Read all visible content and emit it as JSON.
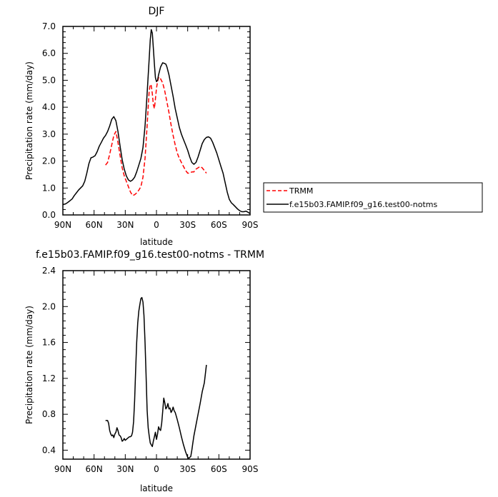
{
  "chart_data": [
    {
      "type": "line",
      "title": "DJF",
      "xlabel": "latitude",
      "ylabel": "Precipitation rate (mm/day)",
      "xlim": [
        90,
        -90
      ],
      "ylim": [
        0,
        7
      ],
      "x_ticks": [
        90,
        60,
        30,
        0,
        -30,
        -60,
        -90
      ],
      "x_tick_labels": [
        "90N",
        "60N",
        "30N",
        "0",
        "30S",
        "60S",
        "90S"
      ],
      "y_ticks": [
        0,
        1,
        2,
        3,
        4,
        5,
        6,
        7
      ],
      "y_tick_labels": [
        "0.0",
        "1.0",
        "2.0",
        "3.0",
        "4.0",
        "5.0",
        "6.0",
        "7.0"
      ],
      "grid": false,
      "legend": "right",
      "series": [
        {
          "name": "TRMM",
          "color": "#ff0000",
          "dash": "dashed",
          "x": [
            49,
            47,
            45,
            43,
            41,
            39,
            37,
            35,
            33,
            31,
            29,
            27,
            25,
            23,
            21,
            19,
            17,
            15,
            13,
            11,
            9,
            8,
            7,
            6,
            5,
            4,
            3,
            2,
            1,
            0,
            -1,
            -2,
            -3,
            -4,
            -6,
            -8,
            -10,
            -12,
            -14,
            -16,
            -18,
            -20,
            -22,
            -24,
            -26,
            -28,
            -30,
            -32,
            -34,
            -36,
            -38,
            -40,
            -42,
            -44,
            -46,
            -48
          ],
          "y": [
            1.85,
            1.95,
            2.25,
            2.6,
            2.95,
            3.1,
            2.7,
            2.2,
            1.75,
            1.45,
            1.25,
            1.05,
            0.85,
            0.72,
            0.75,
            0.82,
            0.92,
            1.05,
            1.4,
            2.1,
            3.3,
            4.0,
            4.6,
            4.85,
            4.8,
            4.5,
            4.1,
            3.95,
            4.3,
            4.7,
            4.95,
            5.1,
            5.12,
            5.05,
            4.9,
            4.6,
            4.2,
            3.8,
            3.35,
            2.95,
            2.6,
            2.3,
            2.1,
            1.95,
            1.8,
            1.65,
            1.55,
            1.55,
            1.6,
            1.6,
            1.7,
            1.75,
            1.8,
            1.75,
            1.65,
            1.55
          ]
        },
        {
          "name": "f.e15b03.FAMIP.f09_g16.test00-notms",
          "color": "#000000",
          "dash": "solid",
          "x": [
            90,
            87,
            84,
            81,
            79,
            77,
            75,
            73,
            71,
            69,
            67,
            65,
            63,
            61,
            59,
            57,
            55,
            53,
            51,
            49,
            47,
            45,
            43,
            41,
            39,
            37,
            35,
            33,
            31,
            29,
            27,
            25,
            23,
            21,
            19,
            17,
            15,
            13,
            11,
            9,
            7,
            6,
            5,
            4,
            3,
            2,
            1,
            0,
            -1,
            -2,
            -4,
            -6,
            -8,
            -9,
            -10,
            -12,
            -14,
            -16,
            -18,
            -20,
            -22,
            -24,
            -26,
            -28,
            -30,
            -32,
            -34,
            -36,
            -38,
            -40,
            -42,
            -44,
            -46,
            -48,
            -50,
            -52,
            -54,
            -56,
            -58,
            -60,
            -62,
            -64,
            -66,
            -68,
            -70,
            -72,
            -74,
            -76,
            -78,
            -80,
            -82,
            -84,
            -86,
            -88,
            -90
          ],
          "y": [
            0.38,
            0.42,
            0.5,
            0.6,
            0.72,
            0.82,
            0.92,
            1.0,
            1.08,
            1.25,
            1.55,
            1.9,
            2.12,
            2.15,
            2.2,
            2.35,
            2.55,
            2.7,
            2.85,
            2.95,
            3.1,
            3.3,
            3.55,
            3.65,
            3.5,
            3.1,
            2.55,
            2.05,
            1.7,
            1.45,
            1.3,
            1.25,
            1.3,
            1.4,
            1.6,
            1.85,
            2.1,
            2.5,
            3.3,
            4.5,
            5.8,
            6.5,
            6.88,
            6.75,
            6.2,
            5.6,
            5.1,
            4.95,
            5.0,
            5.2,
            5.5,
            5.65,
            5.62,
            5.6,
            5.5,
            5.2,
            4.8,
            4.4,
            3.95,
            3.6,
            3.25,
            3.0,
            2.8,
            2.6,
            2.4,
            2.15,
            1.95,
            1.88,
            1.95,
            2.15,
            2.4,
            2.65,
            2.8,
            2.88,
            2.9,
            2.85,
            2.7,
            2.5,
            2.3,
            2.05,
            1.8,
            1.55,
            1.2,
            0.85,
            0.58,
            0.45,
            0.38,
            0.3,
            0.22,
            0.16,
            0.12,
            0.12,
            0.14,
            0.1,
            0.05
          ]
        }
      ]
    },
    {
      "type": "line",
      "title": "f.e15b03.FAMIP.f09_g16.test00-notms - TRMM",
      "xlabel": "latitude",
      "ylabel": "Precipitation rate (mm/day)",
      "xlim": [
        90,
        -90
      ],
      "ylim": [
        0.3,
        2.4
      ],
      "x_ticks": [
        90,
        60,
        30,
        0,
        -30,
        -60,
        -90
      ],
      "x_tick_labels": [
        "90N",
        "60N",
        "30N",
        "0",
        "30S",
        "60S",
        "90S"
      ],
      "y_ticks": [
        0.4,
        0.8,
        1.2,
        1.6,
        2.0,
        2.4
      ],
      "y_tick_labels": [
        "0.4",
        "0.8",
        "1.2",
        "1.6",
        "2.0",
        "2.4"
      ],
      "grid": false,
      "series": [
        {
          "color": "#000000",
          "dash": "solid",
          "x": [
            49,
            47,
            46,
            45,
            44,
            43,
            42,
            41,
            40,
            39,
            38,
            37,
            36,
            35,
            34,
            33,
            32,
            31,
            30,
            29,
            28,
            27,
            26,
            25,
            24,
            23,
            22,
            21,
            20,
            19,
            18,
            17,
            16,
            15,
            14,
            13,
            12,
            11,
            10,
            9,
            8,
            7,
            6,
            5,
            4,
            3,
            2,
            1,
            0,
            -1,
            -2,
            -3,
            -4,
            -5,
            -6,
            -7,
            -8,
            -9,
            -10,
            -11,
            -12,
            -13,
            -14,
            -15,
            -16,
            -17,
            -18,
            -19,
            -20,
            -22,
            -24,
            -26,
            -28,
            -30,
            -31,
            -32,
            -33,
            -34,
            -35,
            -36,
            -38,
            -40,
            -42,
            -44,
            -46,
            -48
          ],
          "y": [
            0.73,
            0.73,
            0.7,
            0.62,
            0.58,
            0.56,
            0.57,
            0.54,
            0.58,
            0.6,
            0.65,
            0.62,
            0.57,
            0.56,
            0.54,
            0.5,
            0.51,
            0.53,
            0.51,
            0.52,
            0.53,
            0.54,
            0.55,
            0.55,
            0.56,
            0.6,
            0.72,
            0.95,
            1.3,
            1.6,
            1.82,
            1.95,
            2.02,
            2.09,
            2.1,
            2.05,
            1.9,
            1.6,
            1.25,
            0.85,
            0.65,
            0.56,
            0.48,
            0.46,
            0.44,
            0.5,
            0.55,
            0.6,
            0.52,
            0.58,
            0.66,
            0.63,
            0.62,
            0.7,
            0.83,
            0.98,
            0.93,
            0.86,
            0.88,
            0.92,
            0.86,
            0.87,
            0.82,
            0.84,
            0.88,
            0.84,
            0.82,
            0.78,
            0.74,
            0.65,
            0.55,
            0.46,
            0.38,
            0.32,
            0.31,
            0.32,
            0.33,
            0.4,
            0.48,
            0.56,
            0.68,
            0.8,
            0.92,
            1.05,
            1.15,
            1.35
          ]
        }
      ]
    }
  ]
}
